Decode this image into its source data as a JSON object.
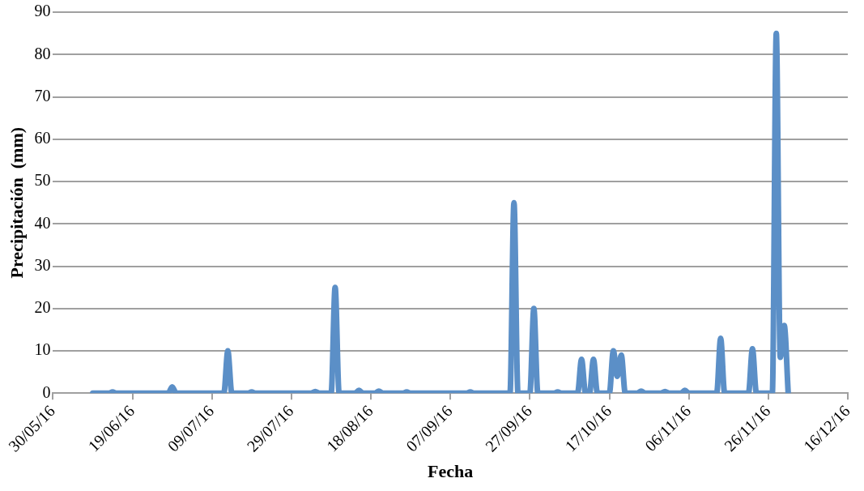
{
  "chart_data": {
    "type": "line",
    "xlabel": "Fecha",
    "ylabel": "Precipitación  (mm)",
    "x": [
      "2016-06-09",
      "2016-06-13",
      "2016-06-14",
      "2016-06-15",
      "2016-06-28",
      "2016-06-29",
      "2016-06-30",
      "2016-07-12",
      "2016-07-13",
      "2016-07-14",
      "2016-07-18",
      "2016-07-19",
      "2016-07-20",
      "2016-08-03",
      "2016-08-04",
      "2016-08-05",
      "2016-08-08",
      "2016-08-09",
      "2016-08-10",
      "2016-08-14",
      "2016-08-15",
      "2016-08-16",
      "2016-08-19",
      "2016-08-20",
      "2016-08-21",
      "2016-08-26",
      "2016-08-27",
      "2016-08-28",
      "2016-09-11",
      "2016-09-12",
      "2016-09-13",
      "2016-09-22",
      "2016-09-23",
      "2016-09-24",
      "2016-09-27",
      "2016-09-28",
      "2016-09-29",
      "2016-10-03",
      "2016-10-04",
      "2016-10-05",
      "2016-10-09",
      "2016-10-10",
      "2016-10-11",
      "2016-10-12",
      "2016-10-13",
      "2016-10-14",
      "2016-10-17",
      "2016-10-18",
      "2016-10-19",
      "2016-10-20",
      "2016-10-21",
      "2016-10-24",
      "2016-10-25",
      "2016-10-26",
      "2016-10-30",
      "2016-10-31",
      "2016-11-01",
      "2016-11-04",
      "2016-11-05",
      "2016-11-06",
      "2016-11-13",
      "2016-11-14",
      "2016-11-15",
      "2016-11-21",
      "2016-11-22",
      "2016-11-23",
      "2016-11-27",
      "2016-11-28",
      "2016-11-29",
      "2016-11-30",
      "2016-12-01"
    ],
    "series": [
      {
        "color": "#5b8fc7",
        "values": [
          0,
          0,
          0.3,
          0,
          0,
          1.5,
          0,
          0,
          10,
          0,
          0,
          0.3,
          0,
          0,
          0.4,
          0,
          0,
          25,
          0,
          0,
          0.7,
          0,
          0,
          0.5,
          0,
          0,
          0.3,
          0,
          0,
          0.3,
          0,
          0,
          45,
          0,
          0,
          20,
          0,
          0,
          0.3,
          0,
          0,
          8,
          0,
          0,
          8,
          0,
          0,
          10,
          4,
          9,
          0,
          0,
          0.5,
          0,
          0,
          0.4,
          0,
          0,
          0.7,
          0,
          0,
          13,
          0,
          0,
          10.5,
          0,
          0,
          85,
          8.5,
          16,
          0
        ]
      }
    ],
    "xlim": [
      "2016-05-30",
      "2016-12-16"
    ],
    "xticks": [
      {
        "value": "2016-05-30",
        "label": "30/05/16"
      },
      {
        "value": "2016-06-19",
        "label": "19/06/16"
      },
      {
        "value": "2016-07-09",
        "label": "09/07/16"
      },
      {
        "value": "2016-07-29",
        "label": "29/07/16"
      },
      {
        "value": "2016-08-18",
        "label": "18/08/16"
      },
      {
        "value": "2016-09-07",
        "label": "07/09/16"
      },
      {
        "value": "2016-09-27",
        "label": "27/09/16"
      },
      {
        "value": "2016-10-17",
        "label": "17/10/16"
      },
      {
        "value": "2016-11-06",
        "label": "06/11/16"
      },
      {
        "value": "2016-11-26",
        "label": "26/11/16"
      },
      {
        "value": "2016-12-16",
        "label": "16/12/16"
      }
    ],
    "ylim": [
      0,
      90
    ],
    "yticks": [
      0,
      10,
      20,
      30,
      40,
      50,
      60,
      70,
      80,
      90
    ],
    "grid": "y",
    "legend": false,
    "marker": "none",
    "line_style": "solid"
  }
}
